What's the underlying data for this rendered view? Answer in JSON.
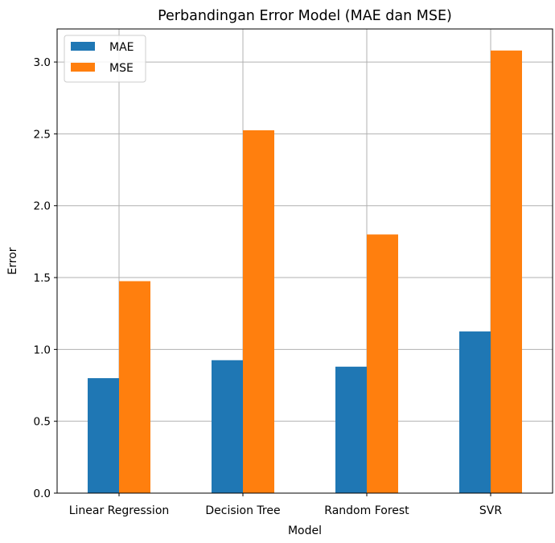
{
  "chart_data": {
    "type": "bar",
    "title": "Perbandingan Error Model (MAE dan MSE)",
    "xlabel": "Model",
    "ylabel": "Error",
    "categories": [
      "Linear Regression",
      "Decision Tree",
      "Random Forest",
      "SVR"
    ],
    "series": [
      {
        "name": "MAE",
        "values": [
          0.8,
          0.925,
          0.88,
          1.125
        ],
        "color": "#1f77b4"
      },
      {
        "name": "MSE",
        "values": [
          1.475,
          2.525,
          1.8,
          3.08
        ],
        "color": "#ff7f0e"
      }
    ],
    "ylim": [
      0,
      3.23
    ],
    "yticks": [
      "0.0",
      "0.5",
      "1.0",
      "1.5",
      "2.0",
      "2.5",
      "3.0"
    ],
    "grid": true,
    "legend_position": "top-left"
  }
}
